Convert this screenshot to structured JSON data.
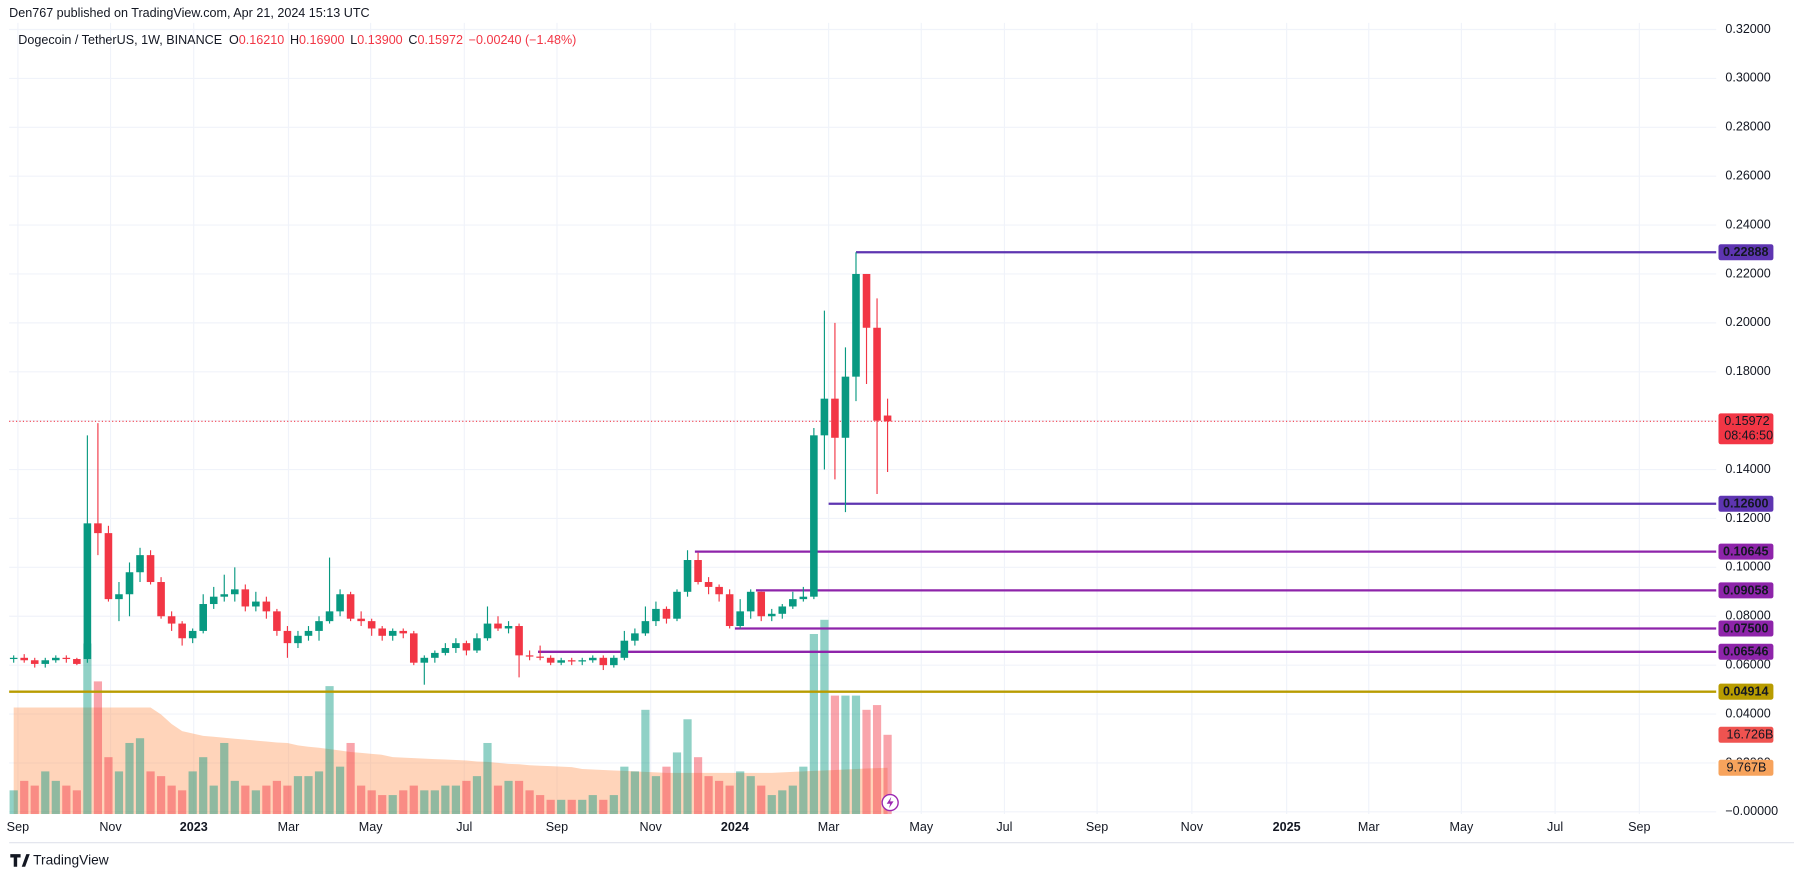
{
  "chart_data": {
    "type": "candlestick",
    "header": "Den767 published on TradingView.com, Apr 21, 2024 15:13 UTC",
    "symbol": "Dogecoin / TetherUS, 1W, BINANCE",
    "ohlc": [
      [
        "O",
        "0.16210"
      ],
      [
        "H",
        "0.16900"
      ],
      [
        "L",
        "0.13900"
      ],
      [
        "C",
        "0.15972"
      ]
    ],
    "change": "−0.00240 (−1.48%)",
    "brand": "TradingView",
    "up_color": "#089981",
    "down_color": "#f23645",
    "grid": true,
    "candles": [
      [
        0.0625,
        0.064,
        0.061,
        0.063
      ],
      [
        0.063,
        0.0645,
        0.061,
        0.062
      ],
      [
        0.062,
        0.063,
        0.059,
        0.0605
      ],
      [
        0.0605,
        0.063,
        0.059,
        0.062
      ],
      [
        0.062,
        0.064,
        0.061,
        0.063
      ],
      [
        0.063,
        0.064,
        0.061,
        0.0625
      ],
      [
        0.0625,
        0.063,
        0.06,
        0.0605
      ],
      [
        0.0625,
        0.154,
        0.061,
        0.118
      ],
      [
        0.118,
        0.159,
        0.105,
        0.114
      ],
      [
        0.114,
        0.117,
        0.086,
        0.087
      ],
      [
        0.087,
        0.094,
        0.078,
        0.089
      ],
      [
        0.089,
        0.102,
        0.08,
        0.098
      ],
      [
        0.098,
        0.108,
        0.094,
        0.105
      ],
      [
        0.105,
        0.107,
        0.093,
        0.094
      ],
      [
        0.094,
        0.096,
        0.079,
        0.08
      ],
      [
        0.08,
        0.082,
        0.074,
        0.077
      ],
      [
        0.077,
        0.078,
        0.068,
        0.071
      ],
      [
        0.071,
        0.075,
        0.069,
        0.074
      ],
      [
        0.074,
        0.089,
        0.073,
        0.085
      ],
      [
        0.085,
        0.092,
        0.083,
        0.088
      ],
      [
        0.088,
        0.097,
        0.086,
        0.089
      ],
      [
        0.089,
        0.1,
        0.086,
        0.091
      ],
      [
        0.091,
        0.093,
        0.082,
        0.084
      ],
      [
        0.084,
        0.09,
        0.082,
        0.086
      ],
      [
        0.086,
        0.088,
        0.079,
        0.082
      ],
      [
        0.082,
        0.083,
        0.072,
        0.074
      ],
      [
        0.074,
        0.076,
        0.063,
        0.069
      ],
      [
        0.069,
        0.074,
        0.067,
        0.072
      ],
      [
        0.072,
        0.076,
        0.07,
        0.074
      ],
      [
        0.074,
        0.08,
        0.07,
        0.078
      ],
      [
        0.078,
        0.104,
        0.077,
        0.082
      ],
      [
        0.082,
        0.091,
        0.08,
        0.089
      ],
      [
        0.089,
        0.09,
        0.078,
        0.079
      ],
      [
        0.079,
        0.082,
        0.076,
        0.078
      ],
      [
        0.078,
        0.079,
        0.072,
        0.075
      ],
      [
        0.075,
        0.076,
        0.07,
        0.072
      ],
      [
        0.072,
        0.075,
        0.07,
        0.074
      ],
      [
        0.074,
        0.075,
        0.071,
        0.073
      ],
      [
        0.073,
        0.074,
        0.06,
        0.061
      ],
      [
        0.061,
        0.064,
        0.052,
        0.063
      ],
      [
        0.063,
        0.066,
        0.061,
        0.065
      ],
      [
        0.065,
        0.069,
        0.064,
        0.067
      ],
      [
        0.067,
        0.071,
        0.065,
        0.069
      ],
      [
        0.069,
        0.07,
        0.064,
        0.066
      ],
      [
        0.066,
        0.073,
        0.065,
        0.071
      ],
      [
        0.071,
        0.084,
        0.07,
        0.077
      ],
      [
        0.077,
        0.08,
        0.074,
        0.075
      ],
      [
        0.075,
        0.078,
        0.073,
        0.076
      ],
      [
        0.076,
        0.077,
        0.055,
        0.064
      ],
      [
        0.064,
        0.066,
        0.062,
        0.0635
      ],
      [
        0.0635,
        0.068,
        0.062,
        0.063
      ],
      [
        0.063,
        0.064,
        0.06,
        0.061
      ],
      [
        0.061,
        0.063,
        0.06,
        0.062
      ],
      [
        0.062,
        0.063,
        0.06,
        0.0615
      ],
      [
        0.0615,
        0.063,
        0.06,
        0.062
      ],
      [
        0.062,
        0.064,
        0.061,
        0.063
      ],
      [
        0.063,
        0.064,
        0.058,
        0.06
      ],
      [
        0.06,
        0.064,
        0.059,
        0.063
      ],
      [
        0.063,
        0.074,
        0.062,
        0.07
      ],
      [
        0.07,
        0.075,
        0.068,
        0.073
      ],
      [
        0.073,
        0.084,
        0.072,
        0.078
      ],
      [
        0.078,
        0.086,
        0.076,
        0.083
      ],
      [
        0.083,
        0.084,
        0.077,
        0.079
      ],
      [
        0.079,
        0.091,
        0.078,
        0.09
      ],
      [
        0.09,
        0.107,
        0.088,
        0.103
      ],
      [
        0.103,
        0.106,
        0.093,
        0.094
      ],
      [
        0.094,
        0.096,
        0.089,
        0.092
      ],
      [
        0.092,
        0.093,
        0.086,
        0.089
      ],
      [
        0.089,
        0.091,
        0.075,
        0.076
      ],
      [
        0.076,
        0.087,
        0.075,
        0.082
      ],
      [
        0.082,
        0.091,
        0.079,
        0.09
      ],
      [
        0.09,
        0.09,
        0.078,
        0.08
      ],
      [
        0.08,
        0.083,
        0.078,
        0.081
      ],
      [
        0.081,
        0.085,
        0.079,
        0.084
      ],
      [
        0.084,
        0.09,
        0.083,
        0.087
      ],
      [
        0.087,
        0.092,
        0.086,
        0.088
      ],
      [
        0.088,
        0.157,
        0.087,
        0.154
      ],
      [
        0.154,
        0.205,
        0.14,
        0.169
      ],
      [
        0.169,
        0.2,
        0.136,
        0.153
      ],
      [
        0.153,
        0.19,
        0.1226,
        0.178
      ],
      [
        0.178,
        0.22888,
        0.168,
        0.22
      ],
      [
        0.22,
        0.22,
        0.175,
        0.198
      ],
      [
        0.198,
        0.21,
        0.13,
        0.16
      ],
      [
        0.1621,
        0.169,
        0.139,
        0.15972
      ]
    ],
    "volume": [
      5,
      7,
      6,
      9,
      7,
      6,
      5,
      36,
      28,
      12,
      9,
      15,
      16,
      9,
      8,
      6,
      5,
      9,
      12,
      6,
      15,
      7,
      6,
      5,
      6,
      7,
      6,
      8,
      8,
      9,
      27,
      10,
      15,
      6,
      5,
      4,
      4,
      5,
      6,
      5,
      5,
      6,
      6,
      7,
      8,
      15,
      6,
      7,
      7,
      5,
      4,
      3,
      3,
      3,
      3,
      4,
      3,
      4,
      10,
      9,
      22,
      8,
      10,
      13,
      20,
      12,
      8,
      7,
      6,
      9,
      8,
      6,
      4,
      5,
      6,
      10,
      38,
      41,
      25,
      25,
      25,
      22,
      23,
      16.726
    ],
    "volume_label": "16.726B",
    "volume_ma": [
      22.5,
      22.5,
      22.5,
      22.5,
      22.5,
      22.5,
      22.5,
      22.5,
      22.5,
      22.5,
      22.5,
      22.5,
      22.5,
      22.5,
      21,
      19,
      17.5,
      17,
      16.5,
      16.3,
      16.1,
      15.9,
      15.7,
      15.5,
      15.3,
      15.1,
      15,
      14.5,
      14.2,
      14,
      13.7,
      13.4,
      13.1,
      12.9,
      12.7,
      12.5,
      12,
      11.9,
      11.8,
      11.7,
      11.6,
      11.5,
      11.4,
      11.3,
      11.1,
      11,
      10.8,
      10.6,
      10.5,
      10.3,
      10.2,
      10.1,
      10,
      9.9,
      9.5,
      9.4,
      9.3,
      9.2,
      9.1,
      9,
      8.9,
      8.8,
      8.7,
      8.7,
      8.7,
      8.7,
      8.7,
      8.7,
      8.7,
      8.7,
      8.7,
      8.7,
      8.7,
      8.8,
      8.9,
      9,
      9.1,
      9.2,
      9.3,
      9.4,
      9.5,
      9.6,
      9.7,
      9.767
    ],
    "volume_ma_label": "9.767B",
    "volume_ylim": [
      0,
      167
    ],
    "xlim": [
      -0.43,
      161.7
    ],
    "xticks": [
      {
        "value": 0.4,
        "label": "Sep"
      },
      {
        "value": 9.2,
        "label": "Nov"
      },
      {
        "value": 17.1,
        "label": "2023"
      },
      {
        "value": 26.1,
        "label": "Mar"
      },
      {
        "value": 33.9,
        "label": "May"
      },
      {
        "value": 42.8,
        "label": "Jul"
      },
      {
        "value": 51.6,
        "label": "Sep"
      },
      {
        "value": 60.5,
        "label": "Nov"
      },
      {
        "value": 68.5,
        "label": "2024"
      },
      {
        "value": 77.4,
        "label": "Mar"
      },
      {
        "value": 86.2,
        "label": "May"
      },
      {
        "value": 94.1,
        "label": "Jul"
      },
      {
        "value": 102.9,
        "label": "Sep"
      },
      {
        "value": 111.9,
        "label": "Nov"
      },
      {
        "value": 120.9,
        "label": "2025"
      },
      {
        "value": 128.7,
        "label": "Mar"
      },
      {
        "value": 137.5,
        "label": "May"
      },
      {
        "value": 146.4,
        "label": "Jul"
      },
      {
        "value": 154.4,
        "label": "Sep"
      }
    ],
    "ylim": [
      -0.0009,
      0.3227
    ],
    "yticks": [
      {
        "value": 0,
        "label": "−0.00000"
      },
      {
        "value": 0.02,
        "label": "0.02000"
      },
      {
        "value": 0.04,
        "label": "0.04000"
      },
      {
        "value": 0.06,
        "label": "0.06000"
      },
      {
        "value": 0.08,
        "label": "0.08000"
      },
      {
        "value": 0.1,
        "label": "0.10000"
      },
      {
        "value": 0.12,
        "label": "0.12000"
      },
      {
        "value": 0.14,
        "label": "0.14000"
      },
      {
        "value": 0.16,
        "label": "0.16000"
      },
      {
        "value": 0.18,
        "label": "0.18000"
      },
      {
        "value": 0.2,
        "label": "0.20000"
      },
      {
        "value": 0.22,
        "label": "0.22000"
      },
      {
        "value": 0.24,
        "label": "0.24000"
      },
      {
        "value": 0.26,
        "label": "0.26000"
      },
      {
        "value": 0.28,
        "label": "0.28000"
      },
      {
        "value": 0.3,
        "label": "0.30000"
      },
      {
        "value": 0.32,
        "label": "0.32000"
      }
    ],
    "levels": [
      {
        "value": 0.22888,
        "label": "0.22888",
        "start": 80,
        "color": "#5e35b1"
      },
      {
        "value": 0.126,
        "label": "0.12600",
        "start": 77.4,
        "color": "#5e35b1"
      },
      {
        "value": 0.10645,
        "label": "0.10645",
        "start": 64.7,
        "color": "#8e24aa"
      },
      {
        "value": 0.09058,
        "label": "0.09058",
        "start": 70.5,
        "color": "#8e24aa"
      },
      {
        "value": 0.075,
        "label": "0.07500",
        "start": 68.5,
        "color": "#8e24aa"
      },
      {
        "value": 0.06546,
        "label": "0.06546",
        "start": 49.8,
        "color": "#8e24aa"
      },
      {
        "value": 0.04914,
        "label": "0.04914",
        "start": -0.43,
        "color": "#b89c00"
      }
    ],
    "last_price": {
      "value": 0.15972,
      "label": "0.15972",
      "countdown": "08:46:50",
      "color": "#f23645"
    }
  }
}
